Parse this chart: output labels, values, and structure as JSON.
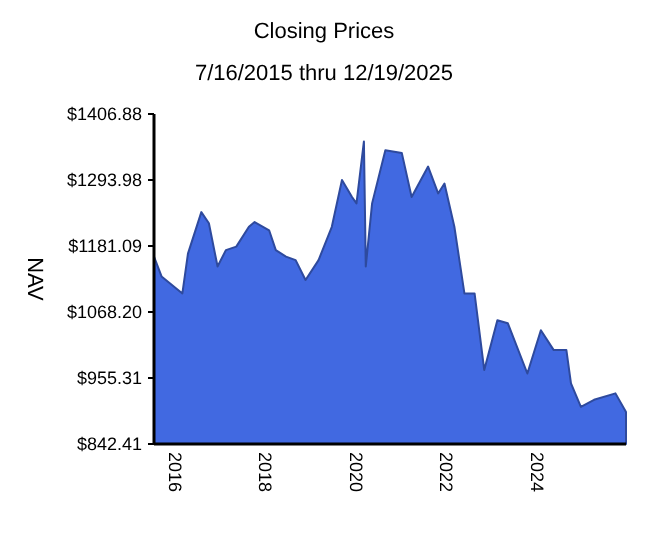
{
  "chart_data": {
    "type": "area",
    "title": "Closing Prices",
    "subtitle": "7/16/2015 thru 12/19/2025",
    "ylabel": "NAV",
    "x": [
      "2015-07-16",
      "2015-09-15",
      "2016-03-01",
      "2016-04-15",
      "2016-08-01",
      "2016-10-01",
      "2016-12-10",
      "2017-02-15",
      "2017-05-10",
      "2017-08-20",
      "2017-10-05",
      "2018-01-30",
      "2018-03-25",
      "2018-06-15",
      "2018-09-01",
      "2018-11-20",
      "2019-03-05",
      "2019-06-20",
      "2019-09-10",
      "2019-11-30",
      "2020-01-05",
      "2020-03-05",
      "2020-03-20",
      "2020-05-10",
      "2020-08-25",
      "2021-01-05",
      "2021-03-25",
      "2021-08-05",
      "2021-10-25",
      "2021-12-15",
      "2022-03-05",
      "2022-05-25",
      "2022-08-15",
      "2022-11-01",
      "2023-02-15",
      "2023-05-10",
      "2023-10-15",
      "2024-02-01",
      "2024-05-15",
      "2024-08-25",
      "2024-10-01",
      "2024-12-20",
      "2025-04-05",
      "2025-09-25",
      "2025-12-19"
    ],
    "series": [
      {
        "color": "#4169e1",
        "values": [
          1163,
          1129,
          1100,
          1168,
          1239,
          1220,
          1146,
          1174,
          1180,
          1214,
          1222,
          1208,
          1174,
          1163,
          1157,
          1123,
          1157,
          1214,
          1294,
          1265,
          1254,
          1360,
          1146,
          1254,
          1345,
          1340,
          1265,
          1317,
          1271,
          1288,
          1214,
          1100,
          1100,
          969,
          1054,
          1049,
          963,
          1037,
          1003,
          1003,
          946,
          906,
          918,
          929,
          897
        ]
      }
    ],
    "xlim": [
      "2015-07-16",
      "2025-12-19"
    ],
    "xticks": [
      {
        "value": "2016-01-01",
        "label": "2016"
      },
      {
        "value": "2018-01-01",
        "label": "2018"
      },
      {
        "value": "2020-01-01",
        "label": "2020"
      },
      {
        "value": "2022-01-01",
        "label": "2022"
      },
      {
        "value": "2024-01-01",
        "label": "2024"
      }
    ],
    "ylim": [
      842.41,
      1406.88
    ],
    "yticks": [
      {
        "value": 842.41,
        "label": "$842.41"
      },
      {
        "value": 955.31,
        "label": "$955.31"
      },
      {
        "value": 1068.2,
        "label": "$1068.20"
      },
      {
        "value": 1181.09,
        "label": "$1181.09"
      },
      {
        "value": 1293.98,
        "label": "$1293.98"
      },
      {
        "value": 1406.88,
        "label": "$1406.88"
      }
    ],
    "grid": false
  }
}
